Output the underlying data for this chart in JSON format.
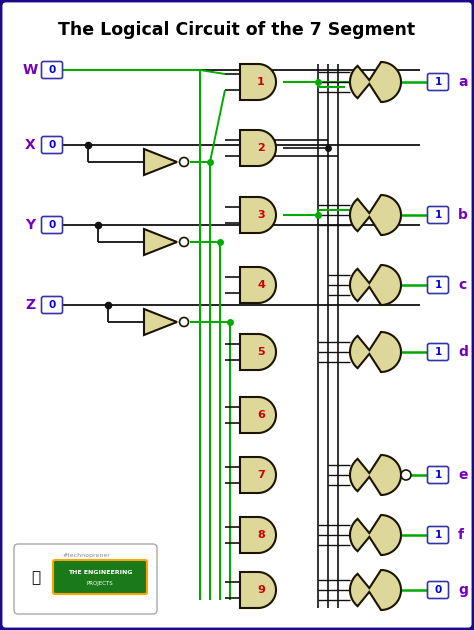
{
  "title": "The Logical Circuit of the 7 Segment",
  "bg_color": "#ffffff",
  "border_color": "#1a0a8b",
  "input_labels": [
    "W",
    "X",
    "Y",
    "Z"
  ],
  "input_values": [
    "0",
    "0",
    "0",
    "0"
  ],
  "output_labels": [
    "a",
    "b",
    "c",
    "d",
    "e",
    "f",
    "g"
  ],
  "output_values": [
    "1",
    "1",
    "1",
    "1",
    "1",
    "1",
    "0"
  ],
  "and_gate_numbers": [
    "1",
    "2",
    "3",
    "4",
    "5",
    "6",
    "7",
    "8",
    "9"
  ],
  "gate_fill": "#ddd89a",
  "gate_edge": "#1a1400",
  "wire_black": "#111111",
  "wire_green": "#00aa00",
  "input_color": "#7700bb",
  "output_color": "#7700bb",
  "value_text_color": "#0000dd",
  "value_border_color": "#3333aa",
  "number_color": "#cc0000",
  "title_fontsize": 12.5
}
